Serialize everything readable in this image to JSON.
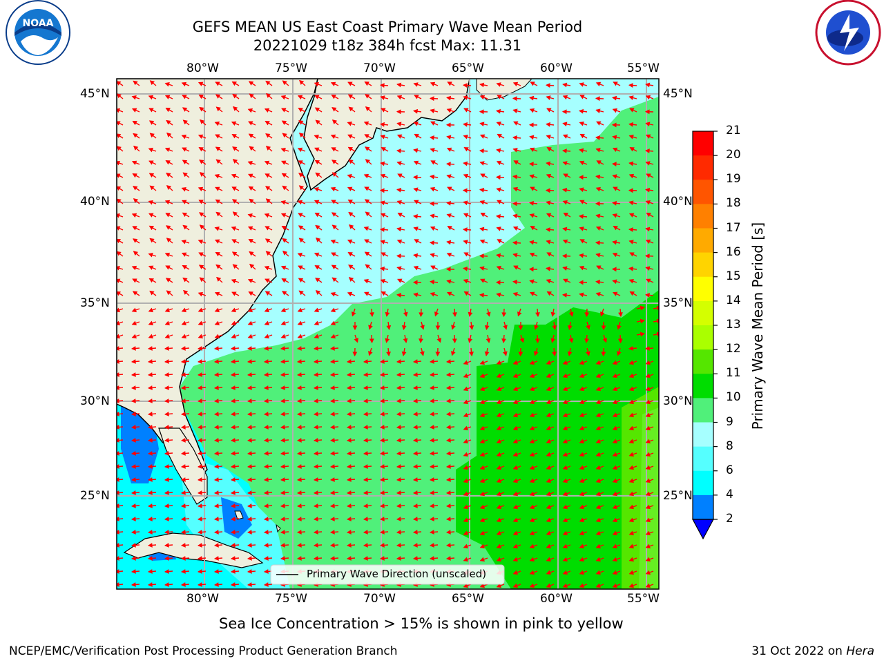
{
  "header": {
    "title_line1": "GEFS MEAN US East Coast Primary Wave Mean Period",
    "title_line2": "20221029 t18z 384h fcst   Max: 11.31"
  },
  "logos": {
    "left": "NOAA",
    "right": "NATIONAL WEATHER SERVICE"
  },
  "map": {
    "lon_labels": [
      "80°W",
      "75°W",
      "70°W",
      "65°W",
      "60°W",
      "55°W"
    ],
    "lat_labels": [
      "45°N",
      "40°N",
      "35°N",
      "30°N",
      "25°N"
    ],
    "lon_range": [
      -85,
      -54.5
    ],
    "lat_range": [
      20,
      46
    ],
    "legend_label": "Primary Wave Direction (unscaled)",
    "arrow_color": "#ff0000",
    "land_color": "#efefde"
  },
  "colorbar": {
    "label": "Primary Wave Mean Period [s]",
    "ticks": [
      "21",
      "20",
      "19",
      "18",
      "17",
      "16",
      "15",
      "14",
      "13",
      "12",
      "11",
      "10",
      "9",
      "8",
      "6",
      "4",
      "2"
    ],
    "colors": [
      "#ff0000",
      "#ff2a00",
      "#ff5500",
      "#ff8000",
      "#ffaa00",
      "#ffd400",
      "#ffff00",
      "#d4ff00",
      "#aaff00",
      "#55e600",
      "#00dd00",
      "#50f07a",
      "#a6ffff",
      "#55ffff",
      "#00ffff",
      "#0080ff",
      "#0000ff"
    ]
  },
  "notes": {
    "sea_ice": "Sea Ice Concentration > 15% is shown in pink to yellow"
  },
  "footer": {
    "left": "NCEP/EMC/Verification Post Processing Product Generation Branch",
    "right_date": "31 Oct 2022 on ",
    "right_machine": "Hera"
  }
}
